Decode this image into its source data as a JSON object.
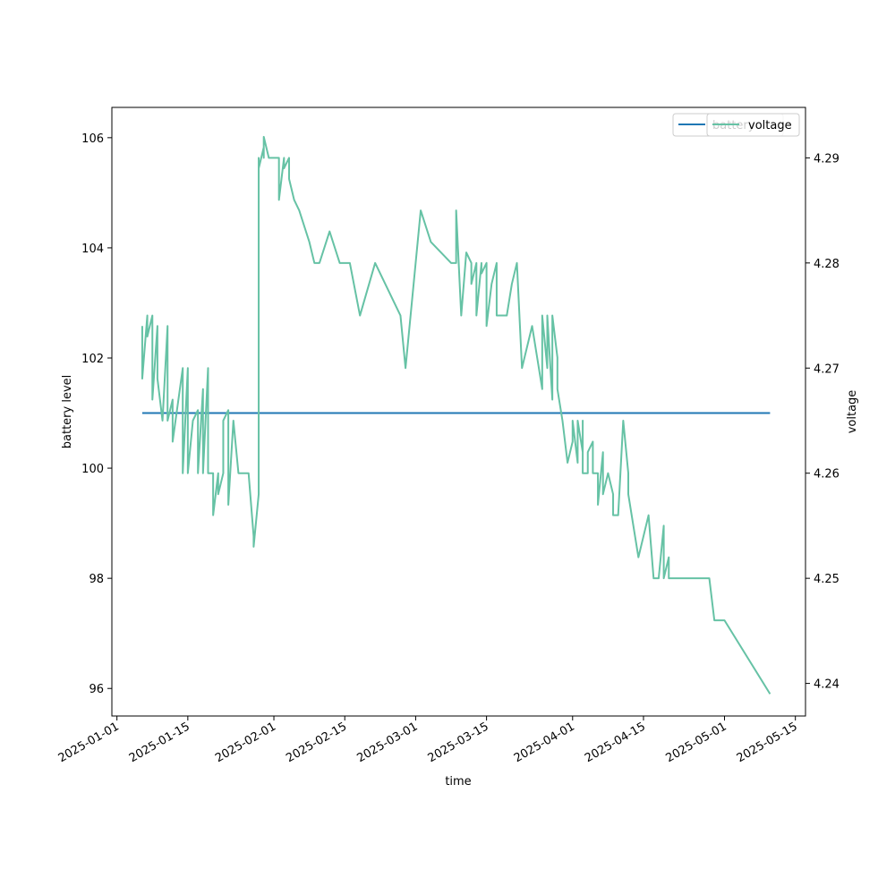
{
  "chart_data": {
    "type": "line",
    "xlabel": "time",
    "ylabel_left": "battery level",
    "ylabel_right": "voltage",
    "xlim": [
      "2024-12-31",
      "2025-05-17"
    ],
    "ylim_left": [
      95.5,
      106.55
    ],
    "ylim_right": [
      4.2369,
      4.2948
    ],
    "x_ticks": [
      "2025-01-01",
      "2025-01-15",
      "2025-02-01",
      "2025-02-15",
      "2025-03-01",
      "2025-03-15",
      "2025-04-01",
      "2025-04-15",
      "2025-05-01",
      "2025-05-15"
    ],
    "y_ticks_left": [
      "96",
      "98",
      "100",
      "102",
      "104",
      "106"
    ],
    "y_ticks_right": [
      "4.24",
      "4.25",
      "4.26",
      "4.27",
      "4.28",
      "4.29"
    ],
    "grid": false,
    "legend_placement": "top-right",
    "series": [
      {
        "name": "battery",
        "axis": "left",
        "color": "#1f77b4",
        "points": [
          [
            "2025-01-06",
            101
          ],
          [
            "2025-05-10",
            101
          ]
        ]
      },
      {
        "name": "voltage",
        "axis": "right",
        "color": "#66c2a5",
        "points": [
          [
            "2025-01-06",
            4.274
          ],
          [
            "2025-01-06",
            4.269
          ],
          [
            "2025-01-07",
            4.275
          ],
          [
            "2025-01-07",
            4.273
          ],
          [
            "2025-01-08",
            4.275
          ],
          [
            "2025-01-08",
            4.267
          ],
          [
            "2025-01-09",
            4.274
          ],
          [
            "2025-01-09",
            4.269
          ],
          [
            "2025-01-10",
            4.265
          ],
          [
            "2025-01-11",
            4.274
          ],
          [
            "2025-01-11",
            4.265
          ],
          [
            "2025-01-12",
            4.267
          ],
          [
            "2025-01-12",
            4.263
          ],
          [
            "2025-01-14",
            4.27
          ],
          [
            "2025-01-14",
            4.26
          ],
          [
            "2025-01-15",
            4.27
          ],
          [
            "2025-01-15",
            4.26
          ],
          [
            "2025-01-16",
            4.265
          ],
          [
            "2025-01-17",
            4.266
          ],
          [
            "2025-01-17",
            4.26
          ],
          [
            "2025-01-18",
            4.268
          ],
          [
            "2025-01-18",
            4.26
          ],
          [
            "2025-01-19",
            4.27
          ],
          [
            "2025-01-19",
            4.26
          ],
          [
            "2025-01-20",
            4.26
          ],
          [
            "2025-01-20",
            4.256
          ],
          [
            "2025-01-21",
            4.26
          ],
          [
            "2025-01-21",
            4.258
          ],
          [
            "2025-01-22",
            4.26
          ],
          [
            "2025-01-22",
            4.265
          ],
          [
            "2025-01-23",
            4.266
          ],
          [
            "2025-01-23",
            4.257
          ],
          [
            "2025-01-24",
            4.265
          ],
          [
            "2025-01-25",
            4.26
          ],
          [
            "2025-01-27",
            4.26
          ],
          [
            "2025-01-28",
            4.254
          ],
          [
            "2025-01-28",
            4.254
          ],
          [
            "2025-01-28",
            4.253
          ],
          [
            "2025-01-29",
            4.258
          ],
          [
            "2025-01-29",
            4.29
          ],
          [
            "2025-01-29",
            4.289
          ],
          [
            "2025-01-30",
            4.291
          ],
          [
            "2025-01-30",
            4.29
          ],
          [
            "2025-01-30",
            4.292
          ],
          [
            "2025-01-31",
            4.29
          ],
          [
            "2025-02-02",
            4.29
          ],
          [
            "2025-02-02",
            4.286
          ],
          [
            "2025-02-03",
            4.29
          ],
          [
            "2025-02-03",
            4.289
          ],
          [
            "2025-02-04",
            4.29
          ],
          [
            "2025-02-04",
            4.288
          ],
          [
            "2025-02-05",
            4.286
          ],
          [
            "2025-02-06",
            4.285
          ],
          [
            "2025-02-08",
            4.282
          ],
          [
            "2025-02-09",
            4.28
          ],
          [
            "2025-02-10",
            4.28
          ],
          [
            "2025-02-12",
            4.283
          ],
          [
            "2025-02-14",
            4.28
          ],
          [
            "2025-02-16",
            4.28
          ],
          [
            "2025-02-18",
            4.275
          ],
          [
            "2025-02-21",
            4.28
          ],
          [
            "2025-02-26",
            4.275
          ],
          [
            "2025-02-27",
            4.27
          ],
          [
            "2025-03-02",
            4.285
          ],
          [
            "2025-03-04",
            4.282
          ],
          [
            "2025-03-06",
            4.281
          ],
          [
            "2025-03-08",
            4.28
          ],
          [
            "2025-03-09",
            4.28
          ],
          [
            "2025-03-09",
            4.285
          ],
          [
            "2025-03-10",
            4.275
          ],
          [
            "2025-03-11",
            4.281
          ],
          [
            "2025-03-12",
            4.28
          ],
          [
            "2025-03-12",
            4.278
          ],
          [
            "2025-03-13",
            4.28
          ],
          [
            "2025-03-13",
            4.275
          ],
          [
            "2025-03-14",
            4.28
          ],
          [
            "2025-03-14",
            4.279
          ],
          [
            "2025-03-15",
            4.28
          ],
          [
            "2025-03-15",
            4.274
          ],
          [
            "2025-03-16",
            4.278
          ],
          [
            "2025-03-17",
            4.28
          ],
          [
            "2025-03-17",
            4.275
          ],
          [
            "2025-03-19",
            4.275
          ],
          [
            "2025-03-20",
            4.278
          ],
          [
            "2025-03-21",
            4.28
          ],
          [
            "2025-03-22",
            4.27
          ],
          [
            "2025-03-24",
            4.274
          ],
          [
            "2025-03-25",
            4.271
          ],
          [
            "2025-03-26",
            4.268
          ],
          [
            "2025-03-26",
            4.275
          ],
          [
            "2025-03-27",
            4.27
          ],
          [
            "2025-03-27",
            4.275
          ],
          [
            "2025-03-28",
            4.267
          ],
          [
            "2025-03-28",
            4.275
          ],
          [
            "2025-03-29",
            4.271
          ],
          [
            "2025-03-29",
            4.268
          ],
          [
            "2025-03-30",
            4.265
          ],
          [
            "2025-03-30",
            4.265
          ],
          [
            "2025-03-31",
            4.261
          ],
          [
            "2025-04-01",
            4.263
          ],
          [
            "2025-04-01",
            4.265
          ],
          [
            "2025-04-02",
            4.261
          ],
          [
            "2025-04-02",
            4.265
          ],
          [
            "2025-04-03",
            4.262
          ],
          [
            "2025-04-03",
            4.265
          ],
          [
            "2025-04-03",
            4.26
          ],
          [
            "2025-04-04",
            4.26
          ],
          [
            "2025-04-04",
            4.262
          ],
          [
            "2025-04-05",
            4.263
          ],
          [
            "2025-04-05",
            4.26
          ],
          [
            "2025-04-06",
            4.26
          ],
          [
            "2025-04-06",
            4.257
          ],
          [
            "2025-04-07",
            4.262
          ],
          [
            "2025-04-07",
            4.258
          ],
          [
            "2025-04-08",
            4.26
          ],
          [
            "2025-04-09",
            4.258
          ],
          [
            "2025-04-09",
            4.256
          ],
          [
            "2025-04-10",
            4.256
          ],
          [
            "2025-04-11",
            4.265
          ],
          [
            "2025-04-12",
            4.26
          ],
          [
            "2025-04-12",
            4.258
          ],
          [
            "2025-04-14",
            4.252
          ],
          [
            "2025-04-16",
            4.256
          ],
          [
            "2025-04-17",
            4.25
          ],
          [
            "2025-04-18",
            4.25
          ],
          [
            "2025-04-19",
            4.255
          ],
          [
            "2025-04-19",
            4.25
          ],
          [
            "2025-04-20",
            4.252
          ],
          [
            "2025-04-20",
            4.25
          ],
          [
            "2025-04-28",
            4.25
          ],
          [
            "2025-04-29",
            4.246
          ],
          [
            "2025-05-01",
            4.246
          ],
          [
            "2025-05-10",
            4.239
          ]
        ]
      }
    ]
  }
}
